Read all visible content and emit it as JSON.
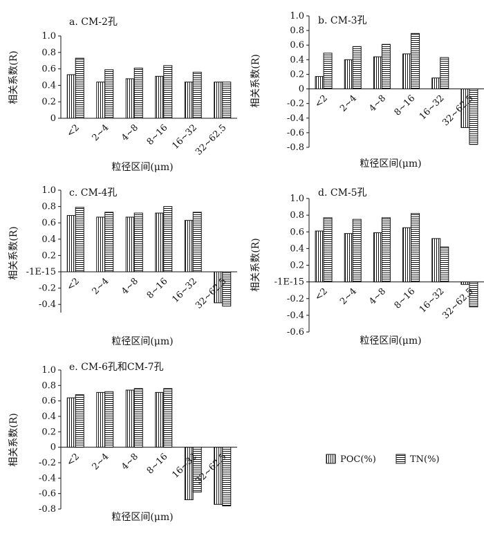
{
  "legend": {
    "poc_label": "POC(%)",
    "tn_label": "TN(%)"
  },
  "colors": {
    "stroke": "#111111",
    "background": "#ffffff"
  },
  "chart_data": [
    {
      "type": "bar",
      "title": "a. CM-2孔",
      "xlabel": "粒径区间(μm)",
      "ylabel": "相关系数(R)",
      "ylim": [
        0,
        1.0
      ],
      "yticks": [
        "0",
        "0.2",
        "0.4",
        "0.6",
        "0.8",
        "1.0"
      ],
      "categories": [
        "<2",
        "2~4",
        "4~8",
        "8~16",
        "16~32",
        "32~62.5"
      ],
      "series": [
        {
          "name": "POC(%)",
          "pattern": "vertical",
          "values": [
            0.53,
            0.44,
            0.48,
            0.51,
            0.44,
            0.44
          ]
        },
        {
          "name": "TN(%)",
          "pattern": "horizontal",
          "values": [
            0.73,
            0.59,
            0.61,
            0.64,
            0.56,
            0.44
          ]
        }
      ]
    },
    {
      "type": "bar",
      "title": "b. CM-3孔",
      "xlabel": "粒径区间(μm)",
      "ylabel": "相关系数(R)",
      "ylim": [
        -0.8,
        1.0
      ],
      "yticks": [
        "-0.8",
        "-0.6",
        "-0.4",
        "-0.2",
        "0",
        "0.2",
        "0.4",
        "0.6",
        "0.8",
        "1.0"
      ],
      "categories": [
        "<2",
        "2~4",
        "4~8",
        "8~16",
        "16~32",
        "32~62.5"
      ],
      "series": [
        {
          "name": "POC(%)",
          "pattern": "vertical",
          "values": [
            0.17,
            0.4,
            0.44,
            0.48,
            0.15,
            -0.53
          ]
        },
        {
          "name": "TN(%)",
          "pattern": "horizontal",
          "values": [
            0.49,
            0.58,
            0.61,
            0.76,
            0.43,
            -0.76
          ]
        }
      ]
    },
    {
      "type": "bar",
      "title": "c. CM-4孔",
      "xlabel": "粒径区间(μm)",
      "ylabel": "相关系数(R)",
      "ylim": [
        -0.5,
        1.0
      ],
      "yticks": [
        "-0.4",
        "-0.2",
        "-1E-15",
        "0.2",
        "0.4",
        "0.6",
        "0.8",
        "1.0"
      ],
      "categories": [
        "<2",
        "2~4",
        "4~8",
        "8~16",
        "16~32",
        "32~62.5"
      ],
      "series": [
        {
          "name": "POC(%)",
          "pattern": "vertical",
          "values": [
            0.69,
            0.67,
            0.67,
            0.72,
            0.63,
            -0.38
          ]
        },
        {
          "name": "TN(%)",
          "pattern": "horizontal",
          "values": [
            0.79,
            0.73,
            0.72,
            0.8,
            0.73,
            -0.42
          ]
        }
      ]
    },
    {
      "type": "bar",
      "title": "d. CM-5孔",
      "xlabel": "粒径区间(μm)",
      "ylabel": "相关系数(R)",
      "ylim": [
        -0.6,
        1.0
      ],
      "yticks": [
        "-0.6",
        "-0.4",
        "-0.2",
        "-1E-15",
        "0.2",
        "0.4",
        "0.6",
        "0.8",
        "1.0"
      ],
      "categories": [
        "<2",
        "2~4",
        "4~8",
        "8~16",
        "16~32",
        "32~62.5"
      ],
      "series": [
        {
          "name": "POC(%)",
          "pattern": "vertical",
          "values": [
            0.61,
            0.58,
            0.59,
            0.65,
            0.52,
            -0.03
          ]
        },
        {
          "name": "TN(%)",
          "pattern": "horizontal",
          "values": [
            0.77,
            0.75,
            0.77,
            0.82,
            0.42,
            -0.3
          ]
        }
      ]
    },
    {
      "type": "bar",
      "title": "e. CM-6孔和CM-7孔",
      "xlabel": "粒径区间(μm)",
      "ylabel": "相关系数(R)",
      "ylim": [
        -0.8,
        1.0
      ],
      "yticks": [
        "-0.8",
        "-0.6",
        "-0.4",
        "-0.2",
        "0",
        "0.2",
        "0.4",
        "0.6",
        "0.8",
        "1.0"
      ],
      "categories": [
        "<2",
        "2~4",
        "4~8",
        "8~16",
        "16~32",
        "32~62.5"
      ],
      "series": [
        {
          "name": "POC(%)",
          "pattern": "vertical",
          "values": [
            0.64,
            0.71,
            0.74,
            0.71,
            -0.68,
            -0.74
          ]
        },
        {
          "name": "TN(%)",
          "pattern": "horizontal",
          "values": [
            0.68,
            0.72,
            0.76,
            0.76,
            -0.58,
            -0.76
          ]
        }
      ]
    }
  ]
}
